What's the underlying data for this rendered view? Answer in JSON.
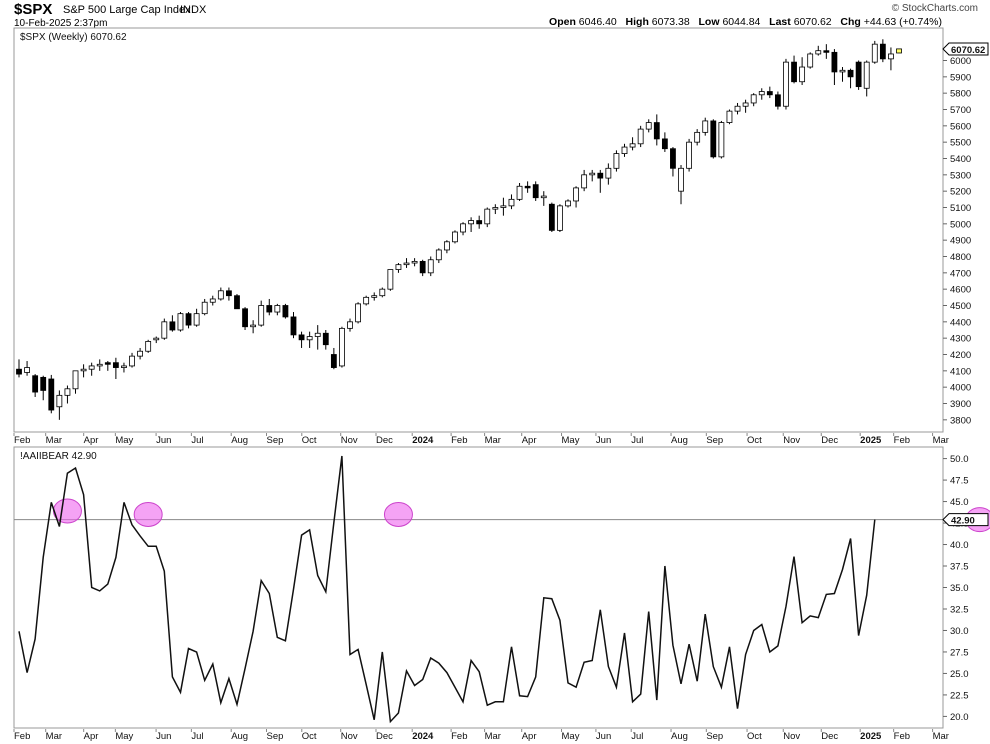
{
  "header": {
    "symbol": "$SPX",
    "name": "S&P 500 Large Cap Index",
    "exchange": "INDX",
    "datetime": "10-Feb-2025 2:37pm",
    "open_label": "Open",
    "open": "6046.40",
    "high_label": "High",
    "high": "6073.38",
    "low_label": "Low",
    "low": "6044.84",
    "last_label": "Last",
    "last": "6070.62",
    "chg_label": "Chg",
    "chg": "+44.63 (+0.74%)",
    "brand": "© StockCharts.com"
  },
  "colors": {
    "accent_highlight": "#ee66ee",
    "price_badge_bg": "#ffffff",
    "last_bar": "#ffff66"
  },
  "chart_data": [
    {
      "type": "candlestick",
      "legend": "$SPX (Weekly) 6070.62",
      "last_value_tag": "6070.62",
      "ylim": [
        3750,
        6150
      ],
      "yticks": [
        3800,
        3900,
        4000,
        4100,
        4200,
        4300,
        4400,
        4500,
        4600,
        4700,
        4800,
        4900,
        5000,
        5100,
        5200,
        5300,
        5400,
        5500,
        5600,
        5700,
        5800,
        5900,
        6000
      ],
      "grid": false,
      "series": [
        {
          "o": 4110,
          "h": 4170,
          "l": 4060,
          "c": 4080
        },
        {
          "o": 4090,
          "h": 4160,
          "l": 4070,
          "c": 4120
        },
        {
          "o": 4070,
          "h": 4080,
          "l": 3940,
          "c": 3970
        },
        {
          "o": 4060,
          "h": 4070,
          "l": 3920,
          "c": 3980
        },
        {
          "o": 4050,
          "h": 4075,
          "l": 3840,
          "c": 3860
        },
        {
          "o": 3880,
          "h": 3980,
          "l": 3800,
          "c": 3950
        },
        {
          "o": 3950,
          "h": 4010,
          "l": 3900,
          "c": 3990
        },
        {
          "o": 3990,
          "h": 4100,
          "l": 3960,
          "c": 4100
        },
        {
          "o": 4100,
          "h": 4140,
          "l": 4060,
          "c": 4110
        },
        {
          "o": 4110,
          "h": 4150,
          "l": 4070,
          "c": 4130
        },
        {
          "o": 4130,
          "h": 4170,
          "l": 4100,
          "c": 4140
        },
        {
          "o": 4150,
          "h": 4160,
          "l": 4100,
          "c": 4140
        },
        {
          "o": 4150,
          "h": 4180,
          "l": 4050,
          "c": 4120
        },
        {
          "o": 4120,
          "h": 4150,
          "l": 4090,
          "c": 4130
        },
        {
          "o": 4130,
          "h": 4210,
          "l": 4120,
          "c": 4190
        },
        {
          "o": 4190,
          "h": 4240,
          "l": 4170,
          "c": 4220
        },
        {
          "o": 4220,
          "h": 4290,
          "l": 4210,
          "c": 4280
        },
        {
          "o": 4290,
          "h": 4310,
          "l": 4270,
          "c": 4300
        },
        {
          "o": 4300,
          "h": 4420,
          "l": 4290,
          "c": 4400
        },
        {
          "o": 4400,
          "h": 4440,
          "l": 4340,
          "c": 4350
        },
        {
          "o": 4350,
          "h": 4460,
          "l": 4340,
          "c": 4450
        },
        {
          "o": 4450,
          "h": 4460,
          "l": 4360,
          "c": 4380
        },
        {
          "o": 4380,
          "h": 4480,
          "l": 4370,
          "c": 4450
        },
        {
          "o": 4450,
          "h": 4540,
          "l": 4440,
          "c": 4520
        },
        {
          "o": 4520,
          "h": 4560,
          "l": 4500,
          "c": 4540
        },
        {
          "o": 4540,
          "h": 4610,
          "l": 4530,
          "c": 4590
        },
        {
          "o": 4590,
          "h": 4610,
          "l": 4530,
          "c": 4560
        },
        {
          "o": 4560,
          "h": 4570,
          "l": 4480,
          "c": 4480
        },
        {
          "o": 4480,
          "h": 4490,
          "l": 4350,
          "c": 4370
        },
        {
          "o": 4370,
          "h": 4410,
          "l": 4330,
          "c": 4380
        },
        {
          "o": 4380,
          "h": 4530,
          "l": 4370,
          "c": 4500
        },
        {
          "o": 4500,
          "h": 4540,
          "l": 4440,
          "c": 4460
        },
        {
          "o": 4460,
          "h": 4510,
          "l": 4440,
          "c": 4500
        },
        {
          "o": 4500,
          "h": 4510,
          "l": 4420,
          "c": 4430
        },
        {
          "o": 4430,
          "h": 4460,
          "l": 4300,
          "c": 4320
        },
        {
          "o": 4320,
          "h": 4340,
          "l": 4240,
          "c": 4290
        },
        {
          "o": 4290,
          "h": 4340,
          "l": 4240,
          "c": 4310
        },
        {
          "o": 4310,
          "h": 4380,
          "l": 4230,
          "c": 4330
        },
        {
          "o": 4330,
          "h": 4350,
          "l": 4230,
          "c": 4260
        },
        {
          "o": 4200,
          "h": 4240,
          "l": 4110,
          "c": 4120
        },
        {
          "o": 4130,
          "h": 4370,
          "l": 4120,
          "c": 4360
        },
        {
          "o": 4360,
          "h": 4420,
          "l": 4340,
          "c": 4400
        },
        {
          "o": 4400,
          "h": 4520,
          "l": 4390,
          "c": 4510
        },
        {
          "o": 4510,
          "h": 4560,
          "l": 4500,
          "c": 4550
        },
        {
          "o": 4550,
          "h": 4580,
          "l": 4530,
          "c": 4560
        },
        {
          "o": 4560,
          "h": 4610,
          "l": 4550,
          "c": 4600
        },
        {
          "o": 4600,
          "h": 4720,
          "l": 4590,
          "c": 4720
        },
        {
          "o": 4720,
          "h": 4760,
          "l": 4700,
          "c": 4750
        },
        {
          "o": 4750,
          "h": 4790,
          "l": 4730,
          "c": 4760
        },
        {
          "o": 4760,
          "h": 4790,
          "l": 4740,
          "c": 4770
        },
        {
          "o": 4770,
          "h": 4780,
          "l": 4680,
          "c": 4700
        },
        {
          "o": 4700,
          "h": 4800,
          "l": 4680,
          "c": 4780
        },
        {
          "o": 4780,
          "h": 4850,
          "l": 4760,
          "c": 4840
        },
        {
          "o": 4840,
          "h": 4900,
          "l": 4820,
          "c": 4890
        },
        {
          "o": 4890,
          "h": 4960,
          "l": 4880,
          "c": 4950
        },
        {
          "o": 4950,
          "h": 5010,
          "l": 4930,
          "c": 5000
        },
        {
          "o": 5000,
          "h": 5040,
          "l": 4950,
          "c": 5020
        },
        {
          "o": 5020,
          "h": 5050,
          "l": 4970,
          "c": 5000
        },
        {
          "o": 5000,
          "h": 5100,
          "l": 4980,
          "c": 5090
        },
        {
          "o": 5090,
          "h": 5120,
          "l": 5060,
          "c": 5100
        },
        {
          "o": 5100,
          "h": 5160,
          "l": 5050,
          "c": 5110
        },
        {
          "o": 5110,
          "h": 5180,
          "l": 5090,
          "c": 5150
        },
        {
          "o": 5150,
          "h": 5250,
          "l": 5140,
          "c": 5230
        },
        {
          "o": 5230,
          "h": 5260,
          "l": 5190,
          "c": 5220
        },
        {
          "o": 5240,
          "h": 5260,
          "l": 5140,
          "c": 5160
        },
        {
          "o": 5160,
          "h": 5200,
          "l": 5110,
          "c": 5170
        },
        {
          "o": 5120,
          "h": 5130,
          "l": 4950,
          "c": 4960
        },
        {
          "o": 4960,
          "h": 5120,
          "l": 4950,
          "c": 5110
        },
        {
          "o": 5110,
          "h": 5150,
          "l": 5100,
          "c": 5140
        },
        {
          "o": 5140,
          "h": 5230,
          "l": 5100,
          "c": 5220
        },
        {
          "o": 5220,
          "h": 5330,
          "l": 5200,
          "c": 5300
        },
        {
          "o": 5300,
          "h": 5330,
          "l": 5260,
          "c": 5310
        },
        {
          "o": 5310,
          "h": 5330,
          "l": 5190,
          "c": 5280
        },
        {
          "o": 5280,
          "h": 5370,
          "l": 5240,
          "c": 5340
        },
        {
          "o": 5340,
          "h": 5450,
          "l": 5320,
          "c": 5430
        },
        {
          "o": 5430,
          "h": 5490,
          "l": 5410,
          "c": 5470
        },
        {
          "o": 5470,
          "h": 5530,
          "l": 5450,
          "c": 5490
        },
        {
          "o": 5490,
          "h": 5600,
          "l": 5470,
          "c": 5580
        },
        {
          "o": 5580,
          "h": 5640,
          "l": 5560,
          "c": 5620
        },
        {
          "o": 5620,
          "h": 5670,
          "l": 5480,
          "c": 5520
        },
        {
          "o": 5520,
          "h": 5560,
          "l": 5440,
          "c": 5460
        },
        {
          "o": 5460,
          "h": 5470,
          "l": 5290,
          "c": 5340
        },
        {
          "o": 5200,
          "h": 5360,
          "l": 5120,
          "c": 5340
        },
        {
          "o": 5340,
          "h": 5520,
          "l": 5320,
          "c": 5500
        },
        {
          "o": 5500,
          "h": 5580,
          "l": 5480,
          "c": 5560
        },
        {
          "o": 5560,
          "h": 5650,
          "l": 5540,
          "c": 5630
        },
        {
          "o": 5630,
          "h": 5640,
          "l": 5400,
          "c": 5410
        },
        {
          "o": 5410,
          "h": 5630,
          "l": 5400,
          "c": 5620
        },
        {
          "o": 5620,
          "h": 5700,
          "l": 5610,
          "c": 5690
        },
        {
          "o": 5690,
          "h": 5740,
          "l": 5670,
          "c": 5720
        },
        {
          "o": 5720,
          "h": 5760,
          "l": 5680,
          "c": 5740
        },
        {
          "o": 5740,
          "h": 5800,
          "l": 5720,
          "c": 5790
        },
        {
          "o": 5790,
          "h": 5830,
          "l": 5760,
          "c": 5810
        },
        {
          "o": 5810,
          "h": 5840,
          "l": 5770,
          "c": 5790
        },
        {
          "o": 5790,
          "h": 5810,
          "l": 5700,
          "c": 5720
        },
        {
          "o": 5720,
          "h": 6010,
          "l": 5700,
          "c": 5990
        },
        {
          "o": 5990,
          "h": 6030,
          "l": 5860,
          "c": 5870
        },
        {
          "o": 5870,
          "h": 6020,
          "l": 5850,
          "c": 5960
        },
        {
          "o": 5960,
          "h": 6050,
          "l": 5950,
          "c": 6040
        },
        {
          "o": 6040,
          "h": 6090,
          "l": 6030,
          "c": 6060
        },
        {
          "o": 6060,
          "h": 6100,
          "l": 6010,
          "c": 6050
        },
        {
          "o": 6050,
          "h": 6070,
          "l": 5850,
          "c": 5930
        },
        {
          "o": 5930,
          "h": 5960,
          "l": 5870,
          "c": 5940
        },
        {
          "o": 5940,
          "h": 5950,
          "l": 5830,
          "c": 5900
        },
        {
          "o": 5990,
          "h": 6000,
          "l": 5820,
          "c": 5840
        },
        {
          "o": 5830,
          "h": 6000,
          "l": 5780,
          "c": 5990
        },
        {
          "o": 5990,
          "h": 6120,
          "l": 5980,
          "c": 6100
        },
        {
          "o": 6100,
          "h": 6130,
          "l": 5990,
          "c": 6010
        },
        {
          "o": 6010,
          "h": 6080,
          "l": 5940,
          "c": 6040
        },
        {
          "o": 6046,
          "h": 6073,
          "l": 6045,
          "c": 6071
        }
      ]
    },
    {
      "type": "line",
      "legend": "!AAIIBEAR 42.90",
      "last_value_tag": "42.90",
      "ylim": [
        19,
        51
      ],
      "yticks": [
        "20.0",
        "22.5",
        "25.0",
        "27.5",
        "30.0",
        "32.5",
        "35.0",
        "37.5",
        "40.0",
        "42.5",
        "45.0",
        "47.5",
        "50.0"
      ],
      "reference_line": 42.9,
      "highlights": [
        {
          "index": 6,
          "value": 43.9
        },
        {
          "index": 16,
          "value": 43.5
        },
        {
          "index": 47,
          "value": 43.5
        },
        {
          "index": 119,
          "value": 42.9
        }
      ],
      "values": [
        29.9,
        25.1,
        29.0,
        38.5,
        44.9,
        42.1,
        48.3,
        48.9,
        45.8,
        35.0,
        34.6,
        35.4,
        38.5,
        44.9,
        42.3,
        41.0,
        39.8,
        39.8,
        36.9,
        24.6,
        22.8,
        27.9,
        27.5,
        24.2,
        26.1,
        21.6,
        24.4,
        21.4,
        25.6,
        29.9,
        35.8,
        34.3,
        29.2,
        28.8,
        34.8,
        41.1,
        41.7,
        36.4,
        34.5,
        42.6,
        50.3,
        27.2,
        27.8,
        23.7,
        19.6,
        27.5,
        19.4,
        20.4,
        25.3,
        23.6,
        24.3,
        26.8,
        26.2,
        25.1,
        23.4,
        21.7,
        26.5,
        25.2,
        21.3,
        21.7,
        21.7,
        28.1,
        22.4,
        22.3,
        24.6,
        33.8,
        33.7,
        31.2,
        23.9,
        23.4,
        26.3,
        26.5,
        32.4,
        25.8,
        23.4,
        29.7,
        21.7,
        22.6,
        32.2,
        21.9,
        37.5,
        28.3,
        23.8,
        28.4,
        24.1,
        31.9,
        25.8,
        23.4,
        28.1,
        20.9,
        27.2,
        30.0,
        30.7,
        27.5,
        28.2,
        32.8,
        38.6,
        30.9,
        31.7,
        31.5,
        34.2,
        34.3,
        37.1,
        40.7,
        29.4,
        34.1,
        42.9
      ]
    }
  ],
  "x_axis_labels": [
    {
      "t": "Feb",
      "frac": 0.0
    },
    {
      "t": "Mar",
      "frac": 0.035
    },
    {
      "t": "Apr",
      "frac": 0.077
    },
    {
      "t": "May",
      "frac": 0.112
    },
    {
      "t": "Jun",
      "frac": 0.157
    },
    {
      "t": "Jul",
      "frac": 0.196
    },
    {
      "t": "Aug",
      "frac": 0.24
    },
    {
      "t": "Sep",
      "frac": 0.279
    },
    {
      "t": "Oct",
      "frac": 0.318
    },
    {
      "t": "Nov",
      "frac": 0.361
    },
    {
      "t": "Dec",
      "frac": 0.4
    },
    {
      "t": "2024",
      "frac": 0.44,
      "bold": true
    },
    {
      "t": "Feb",
      "frac": 0.483
    },
    {
      "t": "Mar",
      "frac": 0.52
    },
    {
      "t": "Apr",
      "frac": 0.561
    },
    {
      "t": "May",
      "frac": 0.605
    },
    {
      "t": "Jun",
      "frac": 0.643
    },
    {
      "t": "Jul",
      "frac": 0.682
    },
    {
      "t": "Aug",
      "frac": 0.726
    },
    {
      "t": "Sep",
      "frac": 0.765
    },
    {
      "t": "Oct",
      "frac": 0.81
    },
    {
      "t": "Nov",
      "frac": 0.85
    },
    {
      "t": "Dec",
      "frac": 0.892
    },
    {
      "t": "2025",
      "frac": 0.935,
      "bold": true
    },
    {
      "t": "Feb",
      "frac": 0.972
    },
    {
      "t": "Mar",
      "frac": 1.015
    }
  ]
}
